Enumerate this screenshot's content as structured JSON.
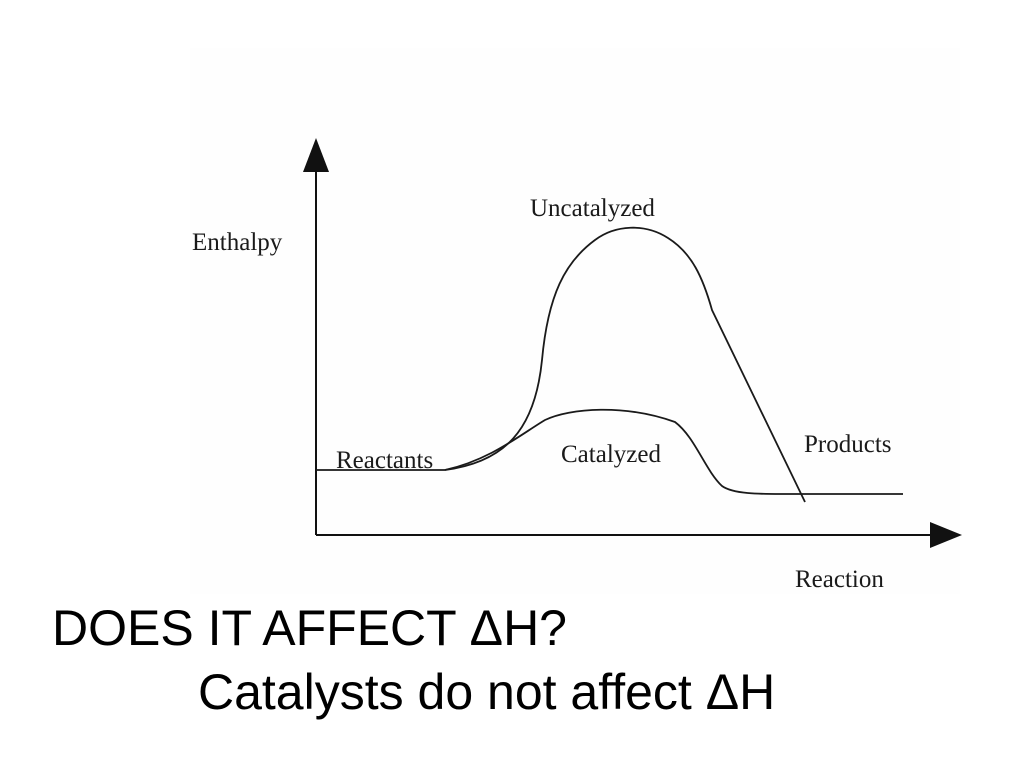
{
  "diagram": {
    "y_axis_label": "Enthalpy",
    "x_axis_label": "Reaction",
    "labels": {
      "uncatalyzed": "Uncatalyzed",
      "catalyzed": "Catalyzed",
      "reactants": "Reactants",
      "products": "Products"
    }
  },
  "slide": {
    "title": "DOES IT AFFECT ΔH?",
    "statement": "Catalysts do not affect ΔH"
  }
}
